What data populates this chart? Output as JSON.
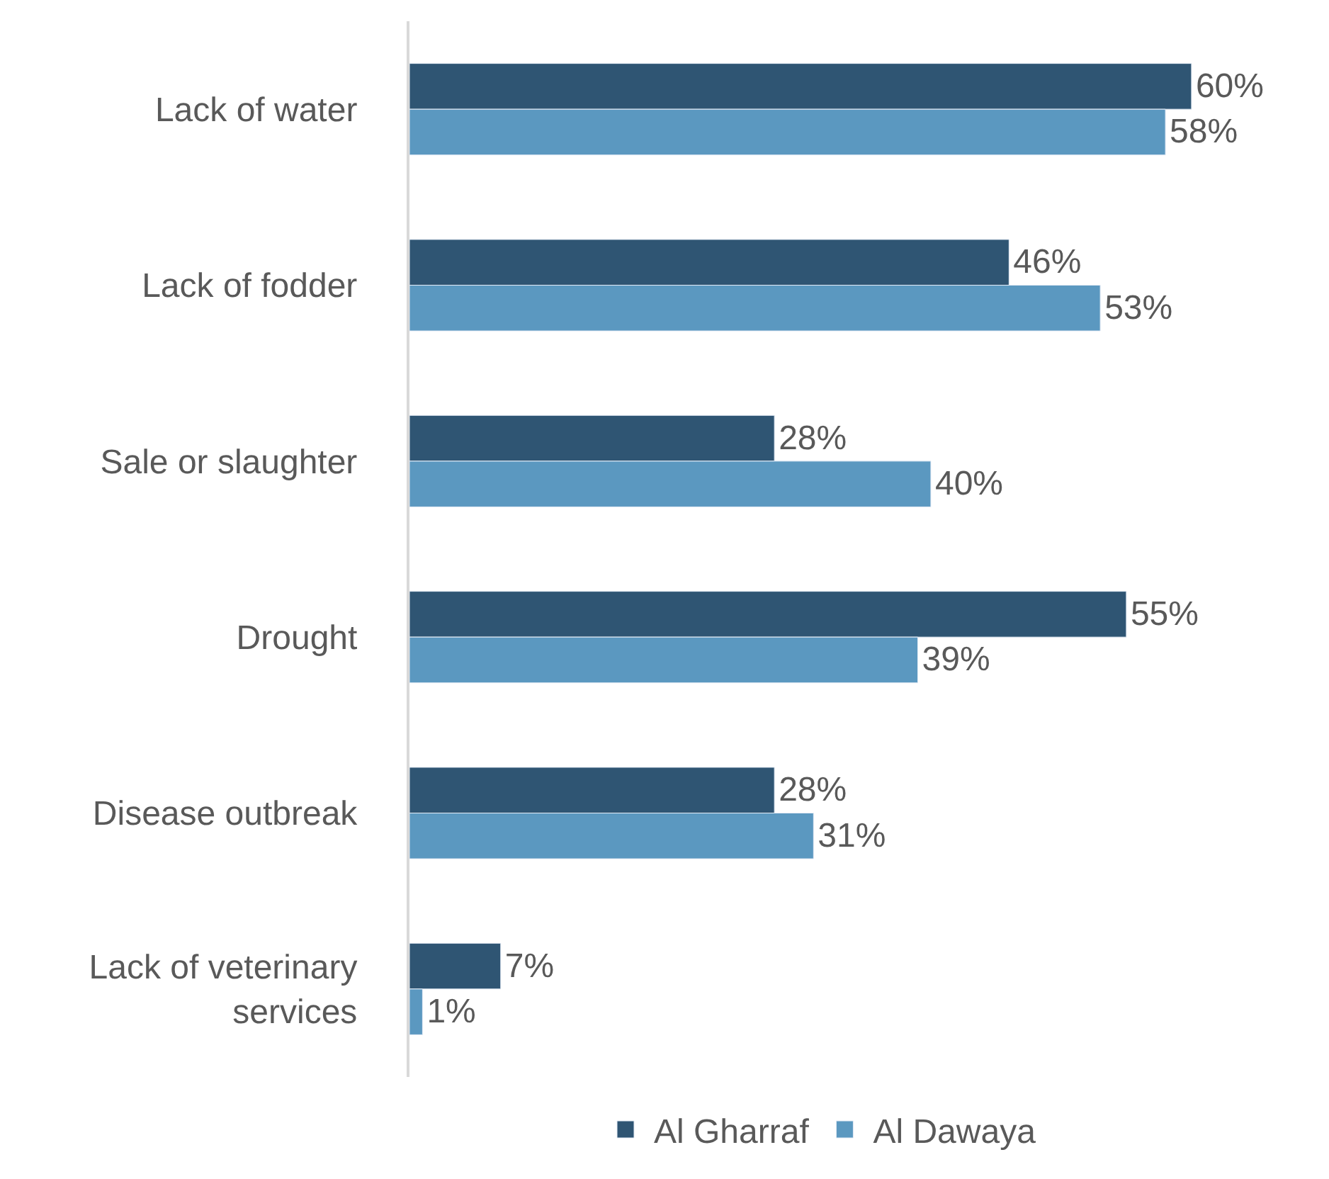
{
  "chart_data": {
    "type": "bar",
    "orientation": "horizontal",
    "categories": [
      "Lack of water",
      "Lack of fodder",
      "Sale or slaughter",
      "Drought",
      "Disease outbreak",
      "Lack of veterinary services"
    ],
    "series": [
      {
        "name": "Al Gharraf",
        "color": "#2f5573",
        "values": [
          60,
          46,
          28,
          55,
          28,
          7
        ],
        "value_labels": [
          "60%",
          "46%",
          "28%",
          "55%",
          "28%",
          "7%"
        ]
      },
      {
        "name": "Al Dawaya",
        "color": "#5b98c0",
        "values": [
          58,
          53,
          40,
          39,
          31,
          1
        ],
        "value_labels": [
          "58%",
          "53%",
          "40%",
          "39%",
          "31%",
          "1%"
        ]
      }
    ],
    "tick_labels": "y",
    "legend": "bottom"
  }
}
